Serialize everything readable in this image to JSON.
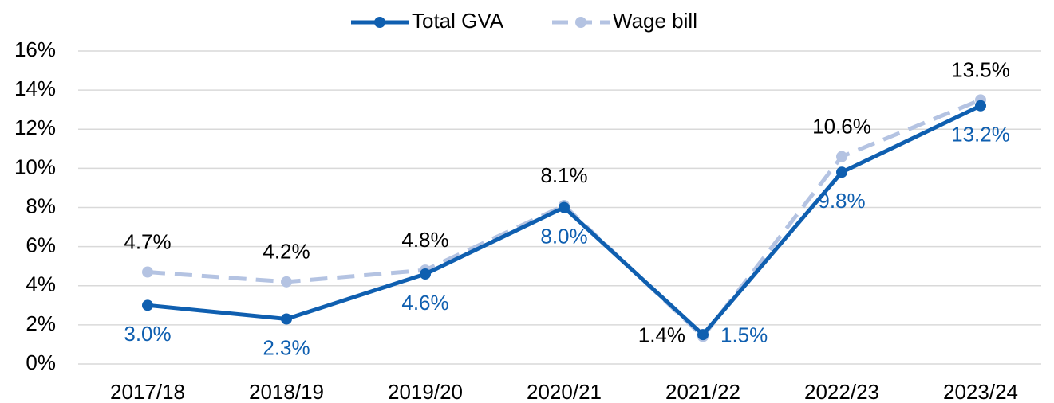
{
  "chart_data": {
    "type": "line",
    "categories": [
      "2017/18",
      "2018/19",
      "2019/20",
      "2020/21",
      "2021/22",
      "2022/23",
      "2023/24"
    ],
    "series": [
      {
        "name": "Total GVA",
        "color": "#0f5fb0",
        "values": [
          3.0,
          2.3,
          4.6,
          8.0,
          1.5,
          9.8,
          13.2
        ],
        "value_labels": [
          "3.0%",
          "2.3%",
          "4.6%",
          "8.0%",
          "1.5%",
          "9.8%",
          "13.2%"
        ]
      },
      {
        "name": "Wage bill",
        "color": "#b4c3e2",
        "values": [
          4.7,
          4.2,
          4.8,
          8.1,
          1.4,
          10.6,
          13.5
        ],
        "value_labels": [
          "4.7%",
          "4.2%",
          "4.8%",
          "8.1%",
          "1.4%",
          "10.6%",
          "13.5%"
        ]
      }
    ],
    "ylim": [
      0,
      16
    ],
    "yticks": [
      {
        "value": 0,
        "label": "0%"
      },
      {
        "value": 2,
        "label": "2%"
      },
      {
        "value": 4,
        "label": "4%"
      },
      {
        "value": 6,
        "label": "6%"
      },
      {
        "value": 8,
        "label": "8%"
      },
      {
        "value": 10,
        "label": "10%"
      },
      {
        "value": 12,
        "label": "12%"
      },
      {
        "value": 14,
        "label": "14%"
      },
      {
        "value": 16,
        "label": "16%"
      }
    ],
    "grid": true,
    "legend": "top"
  }
}
